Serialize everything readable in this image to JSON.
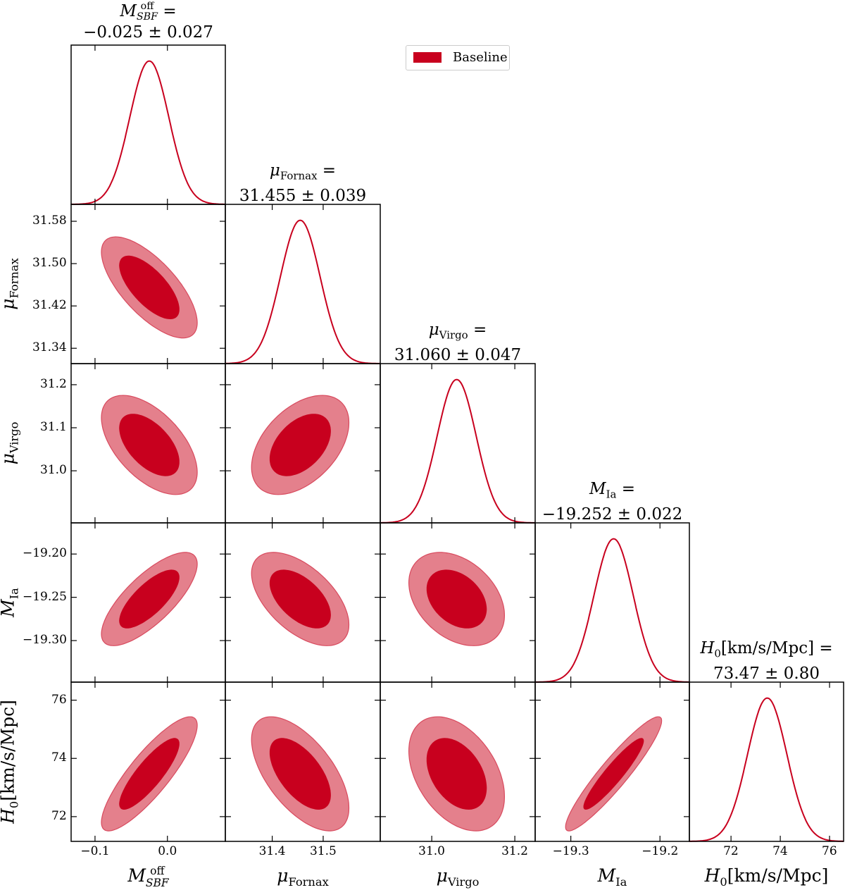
{
  "chart_data": {
    "type": "corner",
    "legend": {
      "label": "Baseline",
      "position": "top-center"
    },
    "colors": {
      "line": "#c8001e",
      "inner": "#c8001e",
      "outer": "#e4808c",
      "outer_edge": "#d84a5e"
    },
    "contour_levels": [
      "68%",
      "95%"
    ],
    "parameters": [
      {
        "sym": "M",
        "sub": "SBF",
        "sup": "off",
        "italic_sub": true,
        "mean": -0.025,
        "sigma": 0.027,
        "value_text": "−0.025 ± 0.027",
        "xlim": [
          -0.133,
          0.08
        ],
        "ylim": null,
        "xticks": [
          -0.1,
          0.0
        ],
        "xtick_labels": [
          "−0.1",
          "0.0"
        ],
        "yticks": [],
        "ytick_labels": []
      },
      {
        "sym": "μ",
        "sub": "Fornax",
        "sup": "",
        "mean": 31.455,
        "sigma": 0.039,
        "value_text": "31.455 ± 0.039",
        "xlim": [
          31.308,
          31.612
        ],
        "ylim": [
          31.311,
          31.612
        ],
        "xticks": [
          31.4,
          31.5
        ],
        "xtick_labels": [
          "31.4",
          "31.5"
        ],
        "yticks": [
          31.34,
          31.42,
          31.5,
          31.58
        ],
        "ytick_labels": [
          "31.34",
          "31.42",
          "31.50",
          "31.58"
        ]
      },
      {
        "sym": "μ",
        "sub": "Virgo",
        "sup": "",
        "mean": 31.06,
        "sigma": 0.047,
        "value_text": "31.060 ± 0.047",
        "xlim": [
          30.876,
          31.249
        ],
        "ylim": [
          30.879,
          31.249
        ],
        "xticks": [
          31.0,
          31.2
        ],
        "xtick_labels": [
          "31.0",
          "31.2"
        ],
        "yticks": [
          31.0,
          31.1,
          31.2
        ],
        "ytick_labels": [
          "31.0",
          "31.1",
          "31.2"
        ]
      },
      {
        "sym": "M",
        "sub": "Ia",
        "sup": "",
        "mean": -19.252,
        "sigma": 0.022,
        "value_text": "−19.252 ± 0.022",
        "xlim": [
          -19.34,
          -19.167
        ],
        "ylim": [
          -19.348,
          -19.164
        ],
        "xticks": [
          -19.3,
          -19.2
        ],
        "xtick_labels": [
          "−19.3",
          "−19.2"
        ],
        "yticks": [
          -19.3,
          -19.25,
          -19.2
        ],
        "ytick_labels": [
          "−19.30",
          "−19.25",
          "−19.20"
        ]
      },
      {
        "sym": "H",
        "sub": "0",
        "sup": "",
        "unit": "[km/s/Mpc]",
        "mean": 73.47,
        "sigma": 0.8,
        "value_text": "73.47 ± 0.80",
        "xlim": [
          70.31,
          76.57
        ],
        "ylim": [
          71.15,
          76.62
        ],
        "xticks": [
          72,
          74,
          76
        ],
        "xtick_labels": [
          "72",
          "74",
          "76"
        ],
        "yticks": [
          72,
          74,
          76
        ],
        "ytick_labels": [
          "72",
          "74",
          "76"
        ]
      }
    ],
    "correlations": {
      "1-0": -0.7,
      "2-0": -0.55,
      "2-1": 0.45,
      "3-0": 0.75,
      "3-1": -0.55,
      "3-2": -0.35,
      "4-0": 0.85,
      "4-1": -0.6,
      "4-2": -0.4,
      "4-3": 0.93
    }
  }
}
